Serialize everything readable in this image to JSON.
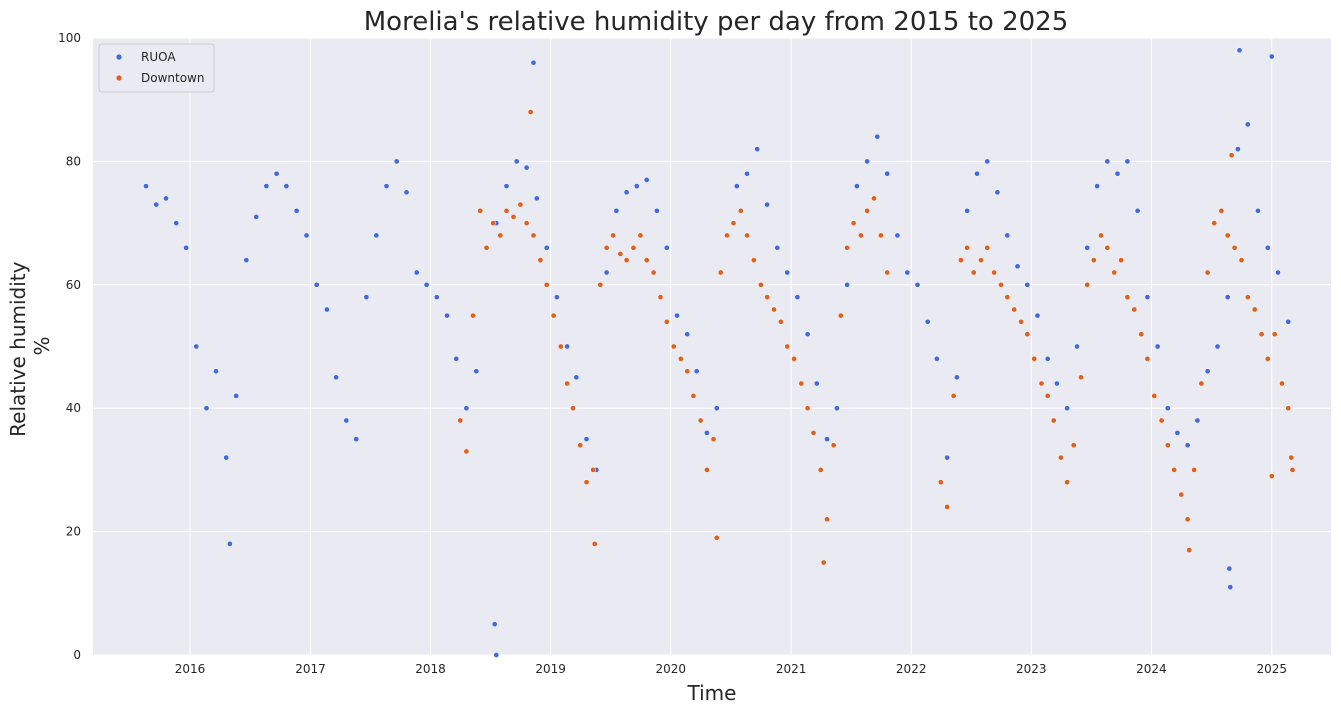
{
  "chart_data": {
    "type": "scatter",
    "title": "Morelia's relative humidity per day from 2015 to 2025",
    "xlabel": "Time",
    "ylabel": [
      "Relative humidity",
      "%"
    ],
    "xlim": [
      "2015-03-12",
      "2025-06-30"
    ],
    "ylim": [
      0,
      100
    ],
    "x_ticks": [
      "2016",
      "2017",
      "2018",
      "2019",
      "2020",
      "2021",
      "2022",
      "2023",
      "2024",
      "2025"
    ],
    "y_ticks": [
      "0",
      "20",
      "40",
      "60",
      "80",
      "100"
    ],
    "grid": true,
    "legend_position": "top-left",
    "series": [
      {
        "name": "RUOA",
        "color": "#4169e1",
        "points": [
          [
            "2015-08-20",
            76
          ],
          [
            "2015-09-20",
            73
          ],
          [
            "2015-10-20",
            74
          ],
          [
            "2015-11-20",
            70
          ],
          [
            "2015-12-20",
            66
          ],
          [
            "2016-01-20",
            50
          ],
          [
            "2016-02-20",
            40
          ],
          [
            "2016-03-20",
            46
          ],
          [
            "2016-04-20",
            32
          ],
          [
            "2016-05-20",
            42
          ],
          [
            "2016-06-20",
            64
          ],
          [
            "2016-07-20",
            71
          ],
          [
            "2016-08-20",
            76
          ],
          [
            "2016-09-20",
            78
          ],
          [
            "2016-10-20",
            76
          ],
          [
            "2016-11-20",
            72
          ],
          [
            "2016-12-20",
            68
          ],
          [
            "2017-01-20",
            60
          ],
          [
            "2017-02-20",
            56
          ],
          [
            "2017-03-20",
            45
          ],
          [
            "2017-04-20",
            38
          ],
          [
            "2017-05-20",
            35
          ],
          [
            "2017-06-20",
            58
          ],
          [
            "2017-07-20",
            68
          ],
          [
            "2017-08-20",
            76
          ],
          [
            "2017-09-20",
            80
          ],
          [
            "2017-10-20",
            75
          ],
          [
            "2017-11-20",
            62
          ],
          [
            "2017-12-20",
            60
          ],
          [
            "2018-01-20",
            58
          ],
          [
            "2018-02-20",
            55
          ],
          [
            "2018-03-20",
            48
          ],
          [
            "2018-04-20",
            40
          ],
          [
            "2018-05-20",
            46
          ],
          [
            "2018-06-20",
            66
          ],
          [
            "2018-07-20",
            70
          ],
          [
            "2018-08-20",
            76
          ],
          [
            "2018-09-20",
            80
          ],
          [
            "2018-10-20",
            79
          ],
          [
            "2018-11-20",
            74
          ],
          [
            "2018-12-20",
            66
          ],
          [
            "2019-01-20",
            58
          ],
          [
            "2019-02-20",
            50
          ],
          [
            "2019-03-20",
            45
          ],
          [
            "2019-04-20",
            35
          ],
          [
            "2019-05-20",
            30
          ],
          [
            "2019-06-20",
            62
          ],
          [
            "2019-07-20",
            72
          ],
          [
            "2019-08-20",
            75
          ],
          [
            "2019-09-20",
            76
          ],
          [
            "2019-10-20",
            77
          ],
          [
            "2019-11-20",
            72
          ],
          [
            "2019-12-20",
            66
          ],
          [
            "2020-01-20",
            55
          ],
          [
            "2020-02-20",
            52
          ],
          [
            "2020-03-20",
            46
          ],
          [
            "2020-04-20",
            36
          ],
          [
            "2020-05-20",
            40
          ],
          [
            "2020-06-20",
            68
          ],
          [
            "2020-07-20",
            76
          ],
          [
            "2020-08-20",
            78
          ],
          [
            "2020-09-20",
            82
          ],
          [
            "2020-10-20",
            73
          ],
          [
            "2020-11-20",
            66
          ],
          [
            "2020-12-20",
            62
          ],
          [
            "2021-01-20",
            58
          ],
          [
            "2021-02-20",
            52
          ],
          [
            "2021-03-20",
            44
          ],
          [
            "2021-04-20",
            35
          ],
          [
            "2021-05-20",
            40
          ],
          [
            "2021-06-20",
            60
          ],
          [
            "2021-07-20",
            76
          ],
          [
            "2021-08-20",
            80
          ],
          [
            "2021-09-20",
            84
          ],
          [
            "2021-10-20",
            78
          ],
          [
            "2021-11-20",
            68
          ],
          [
            "2021-12-20",
            62
          ],
          [
            "2022-01-20",
            60
          ],
          [
            "2022-02-20",
            54
          ],
          [
            "2022-03-20",
            48
          ],
          [
            "2022-04-20",
            32
          ],
          [
            "2022-05-20",
            45
          ],
          [
            "2022-06-20",
            72
          ],
          [
            "2022-07-20",
            78
          ],
          [
            "2022-08-20",
            80
          ],
          [
            "2022-09-20",
            75
          ],
          [
            "2022-10-20",
            68
          ],
          [
            "2022-11-20",
            63
          ],
          [
            "2022-12-20",
            60
          ],
          [
            "2023-01-20",
            55
          ],
          [
            "2023-02-20",
            48
          ],
          [
            "2023-03-20",
            44
          ],
          [
            "2023-04-20",
            40
          ],
          [
            "2023-05-20",
            50
          ],
          [
            "2023-06-20",
            66
          ],
          [
            "2023-07-20",
            76
          ],
          [
            "2023-08-20",
            80
          ],
          [
            "2023-09-20",
            78
          ],
          [
            "2023-10-20",
            80
          ],
          [
            "2023-11-20",
            72
          ],
          [
            "2023-12-20",
            58
          ],
          [
            "2024-01-20",
            50
          ],
          [
            "2024-02-20",
            40
          ],
          [
            "2024-03-20",
            36
          ],
          [
            "2024-04-20",
            34
          ],
          [
            "2024-05-20",
            38
          ],
          [
            "2024-06-20",
            46
          ],
          [
            "2024-07-20",
            50
          ],
          [
            "2024-08-20",
            58
          ],
          [
            "2024-09-20",
            82
          ],
          [
            "2024-10-20",
            86
          ],
          [
            "2024-11-20",
            72
          ],
          [
            "2024-12-20",
            66
          ],
          [
            "2025-01-20",
            62
          ],
          [
            "2025-02-20",
            54
          ],
          [
            "2016-05-01",
            18
          ],
          [
            "2018-07-15",
            5
          ],
          [
            "2018-07-20",
            0
          ],
          [
            "2024-08-25",
            14
          ],
          [
            "2024-08-28",
            11
          ],
          [
            "2024-09-25",
            98
          ],
          [
            "2025-01-01",
            97
          ],
          [
            "2018-11-10",
            96
          ]
        ]
      },
      {
        "name": "Downtown",
        "color": "#e0601c",
        "points": [
          [
            "2018-04-01",
            38
          ],
          [
            "2018-04-20",
            33
          ],
          [
            "2018-05-10",
            55
          ],
          [
            "2018-06-01",
            72
          ],
          [
            "2018-06-20",
            66
          ],
          [
            "2018-07-10",
            70
          ],
          [
            "2018-08-01",
            68
          ],
          [
            "2018-08-20",
            72
          ],
          [
            "2018-09-10",
            71
          ],
          [
            "2018-10-01",
            73
          ],
          [
            "2018-10-20",
            70
          ],
          [
            "2018-11-10",
            68
          ],
          [
            "2018-12-01",
            64
          ],
          [
            "2018-12-20",
            60
          ],
          [
            "2019-01-10",
            55
          ],
          [
            "2019-02-01",
            50
          ],
          [
            "2019-02-20",
            44
          ],
          [
            "2019-03-10",
            40
          ],
          [
            "2019-04-01",
            34
          ],
          [
            "2019-04-20",
            28
          ],
          [
            "2019-05-10",
            30
          ],
          [
            "2019-06-01",
            60
          ],
          [
            "2019-06-20",
            66
          ],
          [
            "2019-07-10",
            68
          ],
          [
            "2019-08-01",
            65
          ],
          [
            "2019-08-20",
            64
          ],
          [
            "2019-09-10",
            66
          ],
          [
            "2019-10-01",
            68
          ],
          [
            "2019-10-20",
            64
          ],
          [
            "2019-11-10",
            62
          ],
          [
            "2019-12-01",
            58
          ],
          [
            "2019-12-20",
            54
          ],
          [
            "2020-01-10",
            50
          ],
          [
            "2020-02-01",
            48
          ],
          [
            "2020-02-20",
            46
          ],
          [
            "2020-03-10",
            42
          ],
          [
            "2020-04-01",
            38
          ],
          [
            "2020-04-20",
            30
          ],
          [
            "2020-05-10",
            35
          ],
          [
            "2020-06-01",
            62
          ],
          [
            "2020-06-20",
            68
          ],
          [
            "2020-07-10",
            70
          ],
          [
            "2020-08-01",
            72
          ],
          [
            "2020-08-20",
            68
          ],
          [
            "2020-09-10",
            64
          ],
          [
            "2020-10-01",
            60
          ],
          [
            "2020-10-20",
            58
          ],
          [
            "2020-11-10",
            56
          ],
          [
            "2020-12-01",
            54
          ],
          [
            "2020-12-20",
            50
          ],
          [
            "2021-01-10",
            48
          ],
          [
            "2021-02-01",
            44
          ],
          [
            "2021-02-20",
            40
          ],
          [
            "2021-03-10",
            36
          ],
          [
            "2021-04-01",
            30
          ],
          [
            "2021-04-20",
            22
          ],
          [
            "2021-05-10",
            34
          ],
          [
            "2021-06-01",
            55
          ],
          [
            "2021-06-20",
            66
          ],
          [
            "2021-07-10",
            70
          ],
          [
            "2021-08-01",
            68
          ],
          [
            "2021-08-20",
            72
          ],
          [
            "2021-09-10",
            74
          ],
          [
            "2021-10-01",
            68
          ],
          [
            "2021-10-20",
            62
          ],
          [
            "2022-04-01",
            28
          ],
          [
            "2022-04-20",
            24
          ],
          [
            "2022-05-10",
            42
          ],
          [
            "2022-06-01",
            64
          ],
          [
            "2022-06-20",
            66
          ],
          [
            "2022-07-10",
            62
          ],
          [
            "2022-08-01",
            64
          ],
          [
            "2022-08-20",
            66
          ],
          [
            "2022-09-10",
            62
          ],
          [
            "2022-10-01",
            60
          ],
          [
            "2022-10-20",
            58
          ],
          [
            "2022-11-10",
            56
          ],
          [
            "2022-12-01",
            54
          ],
          [
            "2022-12-20",
            52
          ],
          [
            "2023-01-10",
            48
          ],
          [
            "2023-02-01",
            44
          ],
          [
            "2023-02-20",
            42
          ],
          [
            "2023-03-10",
            38
          ],
          [
            "2023-04-01",
            32
          ],
          [
            "2023-04-20",
            28
          ],
          [
            "2023-05-10",
            34
          ],
          [
            "2023-06-01",
            45
          ],
          [
            "2023-06-20",
            60
          ],
          [
            "2023-07-10",
            64
          ],
          [
            "2023-08-01",
            68
          ],
          [
            "2023-08-20",
            66
          ],
          [
            "2023-09-10",
            62
          ],
          [
            "2023-10-01",
            64
          ],
          [
            "2023-10-20",
            58
          ],
          [
            "2023-11-10",
            56
          ],
          [
            "2023-12-01",
            52
          ],
          [
            "2023-12-20",
            48
          ],
          [
            "2024-01-10",
            42
          ],
          [
            "2024-02-01",
            38
          ],
          [
            "2024-02-20",
            34
          ],
          [
            "2024-03-10",
            30
          ],
          [
            "2024-04-01",
            26
          ],
          [
            "2024-04-20",
            22
          ],
          [
            "2024-05-10",
            30
          ],
          [
            "2024-06-01",
            44
          ],
          [
            "2024-06-20",
            62
          ],
          [
            "2024-07-10",
            70
          ],
          [
            "2024-08-01",
            72
          ],
          [
            "2024-08-20",
            68
          ],
          [
            "2024-09-10",
            66
          ],
          [
            "2024-10-01",
            64
          ],
          [
            "2024-10-20",
            58
          ],
          [
            "2024-11-10",
            56
          ],
          [
            "2024-12-01",
            52
          ],
          [
            "2024-12-20",
            48
          ],
          [
            "2025-01-10",
            52
          ],
          [
            "2025-02-01",
            44
          ],
          [
            "2025-02-20",
            40
          ],
          [
            "2025-03-01",
            32
          ],
          [
            "2025-03-05",
            30
          ],
          [
            "2019-05-15",
            18
          ],
          [
            "2020-05-20",
            19
          ],
          [
            "2021-04-10",
            15
          ],
          [
            "2024-04-25",
            17
          ],
          [
            "2025-01-01",
            29
          ],
          [
            "2018-11-01",
            88
          ],
          [
            "2024-09-01",
            81
          ]
        ]
      }
    ]
  }
}
